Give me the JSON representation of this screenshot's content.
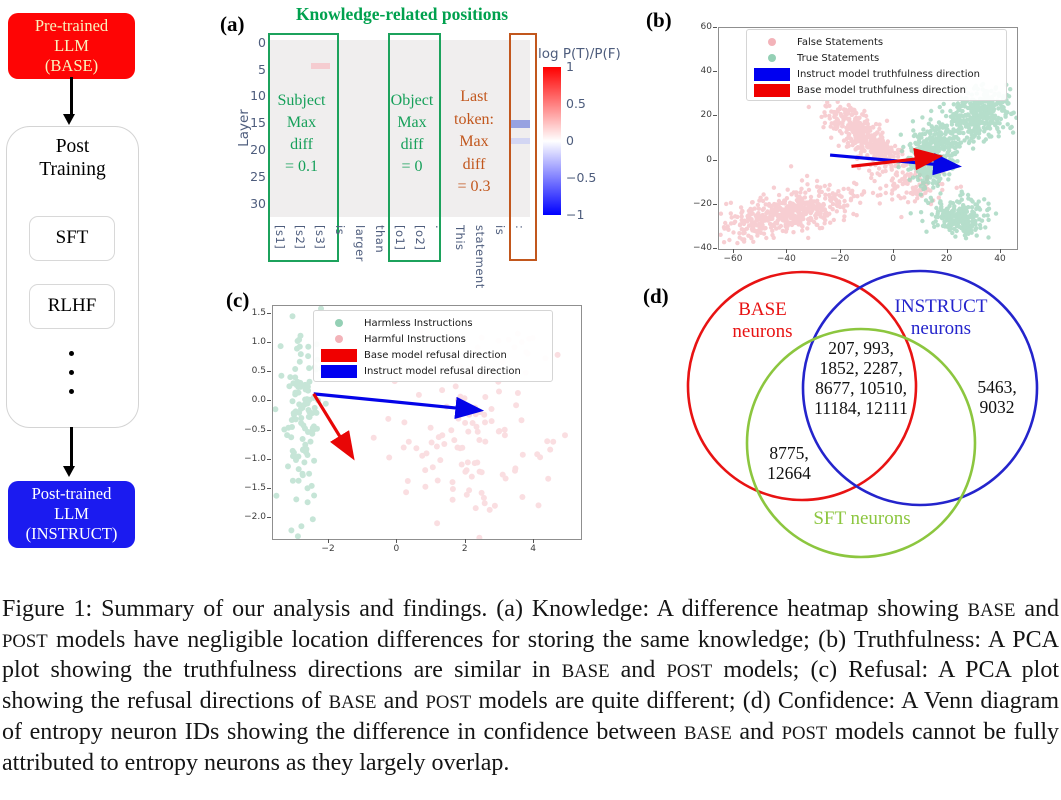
{
  "panels": {
    "a_label": "(a)",
    "b_label": "(b)",
    "c_label": "(c)",
    "d_label": "(d)"
  },
  "flowchart": {
    "base_box": {
      "lines": [
        "Pre-trained",
        "LLM",
        "(BASE)"
      ],
      "bg": "#fe0505",
      "text_color": "#f8f3bd"
    },
    "post_training": {
      "title_lines": [
        "Post",
        "Training"
      ],
      "steps": [
        "SFT",
        "RLHF"
      ]
    },
    "instruct_box": {
      "lines": [
        "Post-trained",
        "LLM",
        "(INSTRUCT)"
      ],
      "bg": "#1b1bf0",
      "text_color": "#ffffff"
    }
  },
  "chart_data": [
    {
      "id": "a",
      "type": "heatmap",
      "title": "Knowledge-related positions",
      "title_color": "#00a14e",
      "ylabel": "Layer",
      "yticks": [
        0,
        5,
        10,
        15,
        20,
        25,
        30
      ],
      "n_layers": 33,
      "tokens": [
        "[s1]",
        "[s2]",
        "[s3]",
        "is",
        "larger",
        "than",
        "[o1]",
        "[o2]",
        ".",
        "This",
        "statement",
        "is",
        ":"
      ],
      "background_value": 0,
      "cells": [
        {
          "token": "[s3]",
          "col": 2,
          "layer": 4.3,
          "rows": 1.1,
          "value": 0.1,
          "color": "#f5ccd0"
        },
        {
          "token": ":",
          "col": 12,
          "layer": 14.9,
          "rows": 1.5,
          "value": -0.3,
          "color": "#97a2e1"
        },
        {
          "token": ":",
          "col": 12,
          "layer": 18.2,
          "rows": 1.2,
          "value": -0.12,
          "color": "#d3d6f3"
        }
      ],
      "annotations": [
        {
          "region": "subject",
          "lines": [
            "Subject",
            "Max",
            "diff",
            "= 0.1"
          ],
          "color": "#16a05a"
        },
        {
          "region": "object",
          "lines": [
            "Object",
            "Max",
            "diff",
            "= 0"
          ],
          "color": "#16a05a"
        },
        {
          "region": "last_token",
          "lines": [
            "Last",
            "token:",
            "Max",
            "diff",
            "= 0.3"
          ],
          "color": "#c2571d"
        }
      ],
      "colorbar": {
        "label": "log P(T)/P(F)",
        "vmin": -1,
        "vmax": 1,
        "ticks": [
          1,
          0.5,
          0,
          -0.5,
          -1
        ],
        "tick_labels": [
          "1",
          "0.5",
          "0",
          "−0.5",
          "−1"
        ]
      }
    },
    {
      "id": "b",
      "type": "scatter",
      "seed": 42,
      "x_range": [
        -65.6,
        46.0
      ],
      "y_range": [
        -40,
        60
      ],
      "xticks": [
        -60,
        -40,
        -20,
        0,
        20,
        40
      ],
      "xtick_labels": [
        "−60",
        "−40",
        "−20",
        "0",
        "20",
        "40"
      ],
      "yticks": [
        60,
        40,
        20,
        0,
        -20,
        -40
      ],
      "ytick_labels": [
        "60",
        "40",
        "20",
        "0",
        "−20",
        "−40"
      ],
      "point_r": 2.2,
      "series": [
        {
          "name": "False Statements",
          "color": "#f6c3c7",
          "opacity": 0.8,
          "clusters": [
            {
              "n": 480,
              "cx": -40,
              "cy": -24,
              "sx": 12,
              "sy": 4.2,
              "rot": 14
            },
            {
              "n": 400,
              "cx": -10.5,
              "cy": 10,
              "sx": 10.5,
              "sy": 3.4,
              "rot": -48
            },
            {
              "n": 80,
              "cx": 6,
              "cy": -12,
              "sx": 7,
              "sy": 4.5,
              "rot": 0
            },
            {
              "n": 25,
              "cx": -30,
              "cy": -13,
              "sx": 6,
              "sy": 4,
              "rot": 0
            }
          ]
        },
        {
          "name": "True Statements",
          "color": "#a3d7bf",
          "opacity": 0.8,
          "clusters": [
            {
              "n": 360,
              "cx": 32,
              "cy": 21,
              "sx": 7,
              "sy": 5.2,
              "rot": 33
            },
            {
              "n": 260,
              "cx": 12.5,
              "cy": 0,
              "sx": 4.2,
              "sy": 6.5,
              "rot": 0
            },
            {
              "n": 230,
              "cx": 24,
              "cy": -26,
              "sx": 5,
              "sy": 4.2,
              "rot": 10
            },
            {
              "n": 110,
              "cx": 19,
              "cy": 9,
              "sx": 4.5,
              "sy": 4.5,
              "rot": 0
            }
          ]
        }
      ],
      "arrows": [
        {
          "name": "Instruct model truthfulness direction",
          "color": "#0404e8",
          "from": [
            -24,
            2.5
          ],
          "to": [
            23,
            -2.5
          ]
        },
        {
          "name": "Base model truthfulness direction",
          "color": "#e80606",
          "from": [
            -16,
            -2.6
          ],
          "to": [
            16,
            1.8
          ]
        }
      ],
      "legend": [
        {
          "marker": "dot",
          "color": "#f3b3b9",
          "label": "False Statements"
        },
        {
          "marker": "dot",
          "color": "#94d0b5",
          "label": "True Statements"
        },
        {
          "marker": "rect",
          "color": "#0000f0",
          "label": "Instruct model truthfulness direction"
        },
        {
          "marker": "rect",
          "color": "#f00000",
          "label": "Base model truthfulness direction"
        }
      ]
    },
    {
      "id": "c",
      "type": "scatter",
      "seed": 7,
      "x_range": [
        -3.64,
        5.37
      ],
      "y_range": [
        -2.36,
        1.637
      ],
      "xticks": [
        -2,
        0,
        2,
        4
      ],
      "xtick_labels": [
        "−2",
        "0",
        "2",
        "4"
      ],
      "yticks": [
        1.5,
        1.0,
        0.5,
        0.0,
        -0.5,
        -1.0,
        -1.5,
        -2.0
      ],
      "ytick_labels": [
        "1.5",
        "1.0",
        "0.5",
        "0.0",
        "−0.5",
        "−1.0",
        "−1.5",
        "−2.0"
      ],
      "point_r": 3,
      "series": [
        {
          "name": "Harmless Instructions",
          "color": "#8fccb1",
          "opacity": 0.5,
          "clusters": [
            {
              "n": 120,
              "cx": -2.78,
              "cy": -0.15,
              "sx": 0.26,
              "sy": 0.82,
              "rot": 0
            }
          ]
        },
        {
          "name": "Harmful Instructions",
          "color": "#f2a9b1",
          "opacity": 0.38,
          "clusters": [
            {
              "n": 100,
              "cx": 2.2,
              "cy": -0.7,
              "sx": 1.1,
              "sy": 0.72,
              "rot": 0
            },
            {
              "n": 14,
              "cx": 3.4,
              "cy": 1.05,
              "sx": 0.8,
              "sy": 0.28,
              "rot": 0
            },
            {
              "n": 5,
              "cx": 0.3,
              "cy": -0.4,
              "sx": 0.7,
              "sy": 0.5,
              "rot": 0
            }
          ]
        }
      ],
      "arrows": [
        {
          "name": "Instruct model refusal direction",
          "color": "#0404e8",
          "from": [
            -2.45,
            0.13
          ],
          "to": [
            2.35,
            -0.15
          ]
        },
        {
          "name": "Base model refusal direction",
          "color": "#e80606",
          "from": [
            -2.45,
            0.13
          ],
          "to": [
            -1.35,
            -0.92
          ]
        }
      ],
      "legend": [
        {
          "marker": "dot",
          "color": "#94d0b5",
          "label": "Harmless Instructions"
        },
        {
          "marker": "dot",
          "color": "#f3b3b9",
          "label": "Harmful Instructions"
        },
        {
          "marker": "rect",
          "color": "#f00000",
          "label": "Base model refusal direction"
        },
        {
          "marker": "rect",
          "color": "#0000f0",
          "label": "Instruct model refusal direction"
        }
      ]
    },
    {
      "id": "d",
      "type": "venn",
      "circles": [
        {
          "lines": [
            "BASE",
            "neurons"
          ],
          "color": "#e81313"
        },
        {
          "lines": [
            "INSTRUCT",
            "neurons"
          ],
          "color": "#2424cc"
        },
        {
          "lines": [
            "SFT neurons"
          ],
          "color": "#8cc63f"
        }
      ],
      "regions": {
        "base_instruct_sft": {
          "lines": [
            "207, 993,",
            "1852, 2287,",
            "8677, 10510,",
            "11184, 12111"
          ]
        },
        "instruct_only": {
          "lines": [
            "5463,",
            "9032"
          ]
        },
        "base_sft": {
          "lines": [
            "8775,",
            "12664"
          ]
        }
      }
    }
  ],
  "caption_segments": [
    {
      "t": "Figure 1: Summary of our analysis and findings. (a) Knowledge: A difference heatmap showing "
    },
    {
      "t": "BASE",
      "sc": true
    },
    {
      "t": " and "
    },
    {
      "t": "POST",
      "sc": true
    },
    {
      "t": " models have negligible location differences for storing the same knowledge; (b) Truthfulness: A PCA plot showing the truthfulness directions are similar in "
    },
    {
      "t": "BASE",
      "sc": true
    },
    {
      "t": " and "
    },
    {
      "t": "POST",
      "sc": true
    },
    {
      "t": " models; (c) Refusal: A PCA plot showing the refusal directions of "
    },
    {
      "t": "BASE",
      "sc": true
    },
    {
      "t": " and "
    },
    {
      "t": "POST",
      "sc": true
    },
    {
      "t": " models are quite different; (d) Confidence: A Venn diagram of entropy neuron IDs showing the difference in confidence between "
    },
    {
      "t": "BASE",
      "sc": true
    },
    {
      "t": " and "
    },
    {
      "t": "POST",
      "sc": true
    },
    {
      "t": " models cannot be fully attributed to entropy neurons as they largely overlap."
    }
  ]
}
